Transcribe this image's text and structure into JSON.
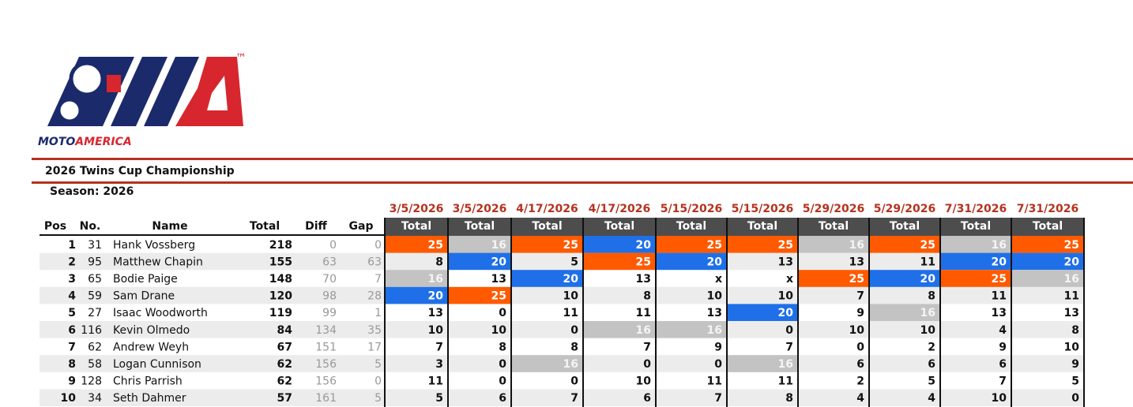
{
  "logo": {
    "moto": "MOTO",
    "america": "AMERICA",
    "tm": "™"
  },
  "header": {
    "title": "2026 Twins Cup Championship",
    "season": "Season: 2026"
  },
  "table": {
    "columns": [
      "Pos",
      "No.",
      "Name",
      "Total",
      "Diff",
      "Gap"
    ],
    "races": [
      {
        "date": "3/5/2026",
        "label": "Total"
      },
      {
        "date": "3/5/2026",
        "label": "Total"
      },
      {
        "date": "4/17/2026",
        "label": "Total"
      },
      {
        "date": "4/17/2026",
        "label": "Total"
      },
      {
        "date": "5/15/2026",
        "label": "Total"
      },
      {
        "date": "5/15/2026",
        "label": "Total"
      },
      {
        "date": "5/29/2026",
        "label": "Total"
      },
      {
        "date": "5/29/2026",
        "label": "Total"
      },
      {
        "date": "7/31/2026",
        "label": "Total"
      },
      {
        "date": "7/31/2026",
        "label": "Total"
      }
    ],
    "highlight_colors": {
      "orange": "#ff5a00",
      "blue": "#1f70e8",
      "gray": "#c3c3c3"
    },
    "rows": [
      {
        "pos": 1,
        "no": 31,
        "name": "Hank Vossberg",
        "total": 218,
        "diff": 0,
        "gap": 0,
        "results": [
          25,
          16,
          25,
          20,
          25,
          25,
          16,
          25,
          16,
          25
        ],
        "highlight": [
          "orange",
          "gray",
          "orange",
          "blue",
          "orange",
          "orange",
          "gray",
          "orange",
          "gray",
          "orange"
        ]
      },
      {
        "pos": 2,
        "no": 95,
        "name": "Matthew Chapin",
        "total": 155,
        "diff": 63,
        "gap": 63,
        "results": [
          8,
          20,
          5,
          25,
          20,
          13,
          13,
          11,
          20,
          20
        ],
        "highlight": [
          null,
          "blue",
          null,
          "orange",
          "blue",
          null,
          null,
          null,
          "blue",
          "blue"
        ]
      },
      {
        "pos": 3,
        "no": 65,
        "name": "Bodie Paige",
        "total": 148,
        "diff": 70,
        "gap": 7,
        "results": [
          16,
          13,
          20,
          13,
          "x",
          "x",
          25,
          20,
          25,
          16
        ],
        "highlight": [
          "gray",
          null,
          "blue",
          null,
          null,
          null,
          "orange",
          "blue",
          "orange",
          "gray"
        ]
      },
      {
        "pos": 4,
        "no": 59,
        "name": "Sam Drane",
        "total": 120,
        "diff": 98,
        "gap": 28,
        "results": [
          20,
          25,
          10,
          8,
          10,
          10,
          7,
          8,
          11,
          11
        ],
        "highlight": [
          "blue",
          "orange",
          null,
          null,
          null,
          null,
          null,
          null,
          null,
          null
        ]
      },
      {
        "pos": 5,
        "no": 27,
        "name": "Isaac Woodworth",
        "total": 119,
        "diff": 99,
        "gap": 1,
        "results": [
          13,
          0,
          11,
          11,
          13,
          20,
          9,
          16,
          13,
          13
        ],
        "highlight": [
          null,
          null,
          null,
          null,
          null,
          "blue",
          null,
          "gray",
          null,
          null
        ]
      },
      {
        "pos": 6,
        "no": 116,
        "name": "Kevin Olmedo",
        "total": 84,
        "diff": 134,
        "gap": 35,
        "results": [
          10,
          10,
          0,
          16,
          16,
          0,
          10,
          10,
          4,
          8
        ],
        "highlight": [
          null,
          null,
          null,
          "gray",
          "gray",
          null,
          null,
          null,
          null,
          null
        ]
      },
      {
        "pos": 7,
        "no": 62,
        "name": "Andrew Weyh",
        "total": 67,
        "diff": 151,
        "gap": 17,
        "results": [
          7,
          8,
          8,
          7,
          9,
          7,
          0,
          2,
          9,
          10
        ],
        "highlight": [
          null,
          null,
          null,
          null,
          null,
          null,
          null,
          null,
          null,
          null
        ]
      },
      {
        "pos": 8,
        "no": 58,
        "name": "Logan Cunnison",
        "total": 62,
        "diff": 156,
        "gap": 5,
        "results": [
          3,
          0,
          16,
          0,
          0,
          16,
          6,
          6,
          6,
          9
        ],
        "highlight": [
          null,
          null,
          "gray",
          null,
          null,
          "gray",
          null,
          null,
          null,
          null
        ]
      },
      {
        "pos": 9,
        "no": 128,
        "name": "Chris Parrish",
        "total": 62,
        "diff": 156,
        "gap": 0,
        "results": [
          11,
          0,
          0,
          10,
          11,
          11,
          2,
          5,
          7,
          5
        ],
        "highlight": [
          null,
          null,
          null,
          null,
          null,
          null,
          null,
          null,
          null,
          null
        ]
      },
      {
        "pos": 10,
        "no": 34,
        "name": "Seth Dahmer",
        "total": 57,
        "diff": 161,
        "gap": 5,
        "results": [
          5,
          6,
          7,
          6,
          7,
          8,
          4,
          4,
          10,
          0
        ],
        "highlight": [
          null,
          null,
          null,
          null,
          null,
          null,
          null,
          null,
          null,
          null
        ]
      }
    ]
  }
}
